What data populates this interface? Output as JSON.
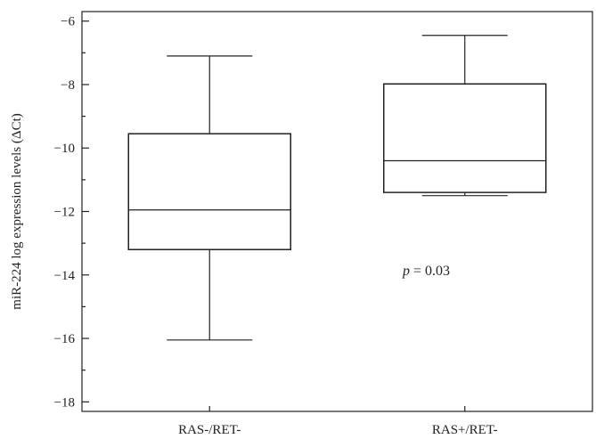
{
  "chart_data": {
    "type": "box",
    "title": "",
    "xlabel": "",
    "ylabel": "miR-224 log expression levels (ΔCt)",
    "ylim": [
      -18.3,
      -5.7
    ],
    "y_major_ticks": [
      -18,
      -16,
      -14,
      -12,
      -10,
      -8,
      -6
    ],
    "y_major_tick_labels": [
      "−18",
      "−16",
      "−14",
      "−12",
      "−10",
      "−8",
      "−6"
    ],
    "y_minor_ticks": [
      -17,
      -15,
      -13,
      -11,
      -9,
      -7
    ],
    "grid": false,
    "legend": "none",
    "categories": [
      "RAS-/RET-",
      "RAS+/RET-"
    ],
    "boxes": [
      {
        "category": "RAS-/RET-",
        "whisker_low": -16.05,
        "q1": -13.2,
        "median": -11.95,
        "q3": -9.55,
        "whisker_high": -7.1
      },
      {
        "category": "RAS+/RET-",
        "whisker_low": -11.5,
        "q1": -11.4,
        "median": -10.4,
        "q3": -7.98,
        "whisker_high": -6.45
      }
    ],
    "annotations": [
      {
        "p_symbol": "p",
        "rest": " = 0.03"
      }
    ],
    "colors": {
      "stroke": "#222222",
      "box_fill": "#ffffff",
      "background": "#ffffff"
    }
  }
}
